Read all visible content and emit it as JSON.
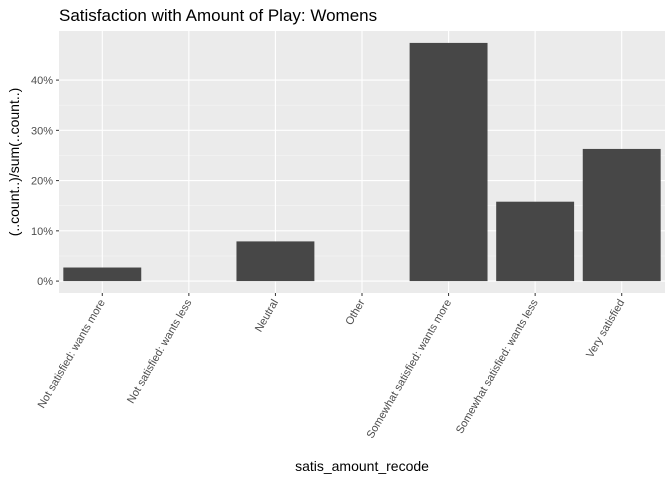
{
  "chart_data": {
    "type": "bar",
    "title": "Satisfaction with Amount of Play: Womens",
    "xlabel": "satis_amount_recode",
    "ylabel": "(..count..)/sum(..count..)",
    "categories": [
      "Not satisfied: wants more",
      "Not satisfied: wants less",
      "Neutral",
      "Other",
      "Somewhat satisfied: wants more",
      "Somewhat satisfied: wants less",
      "Very satisfied"
    ],
    "values": [
      0.027,
      0.0,
      0.079,
      0.0,
      0.474,
      0.158,
      0.263
    ],
    "yticks": [
      0,
      0.1,
      0.2,
      0.3,
      0.4
    ],
    "ytick_labels": [
      "0%",
      "10%",
      "20%",
      "30%",
      "40%"
    ],
    "ylim": [
      -0.0237,
      0.4977
    ],
    "grid": true,
    "legend": "none",
    "colors": {
      "bar": "#474747",
      "panel": "#ebebeb",
      "grid_major": "#ffffff",
      "grid_minor": "#f5f5f5",
      "tick_text": "#4d4d4d",
      "text": "#000000"
    }
  }
}
